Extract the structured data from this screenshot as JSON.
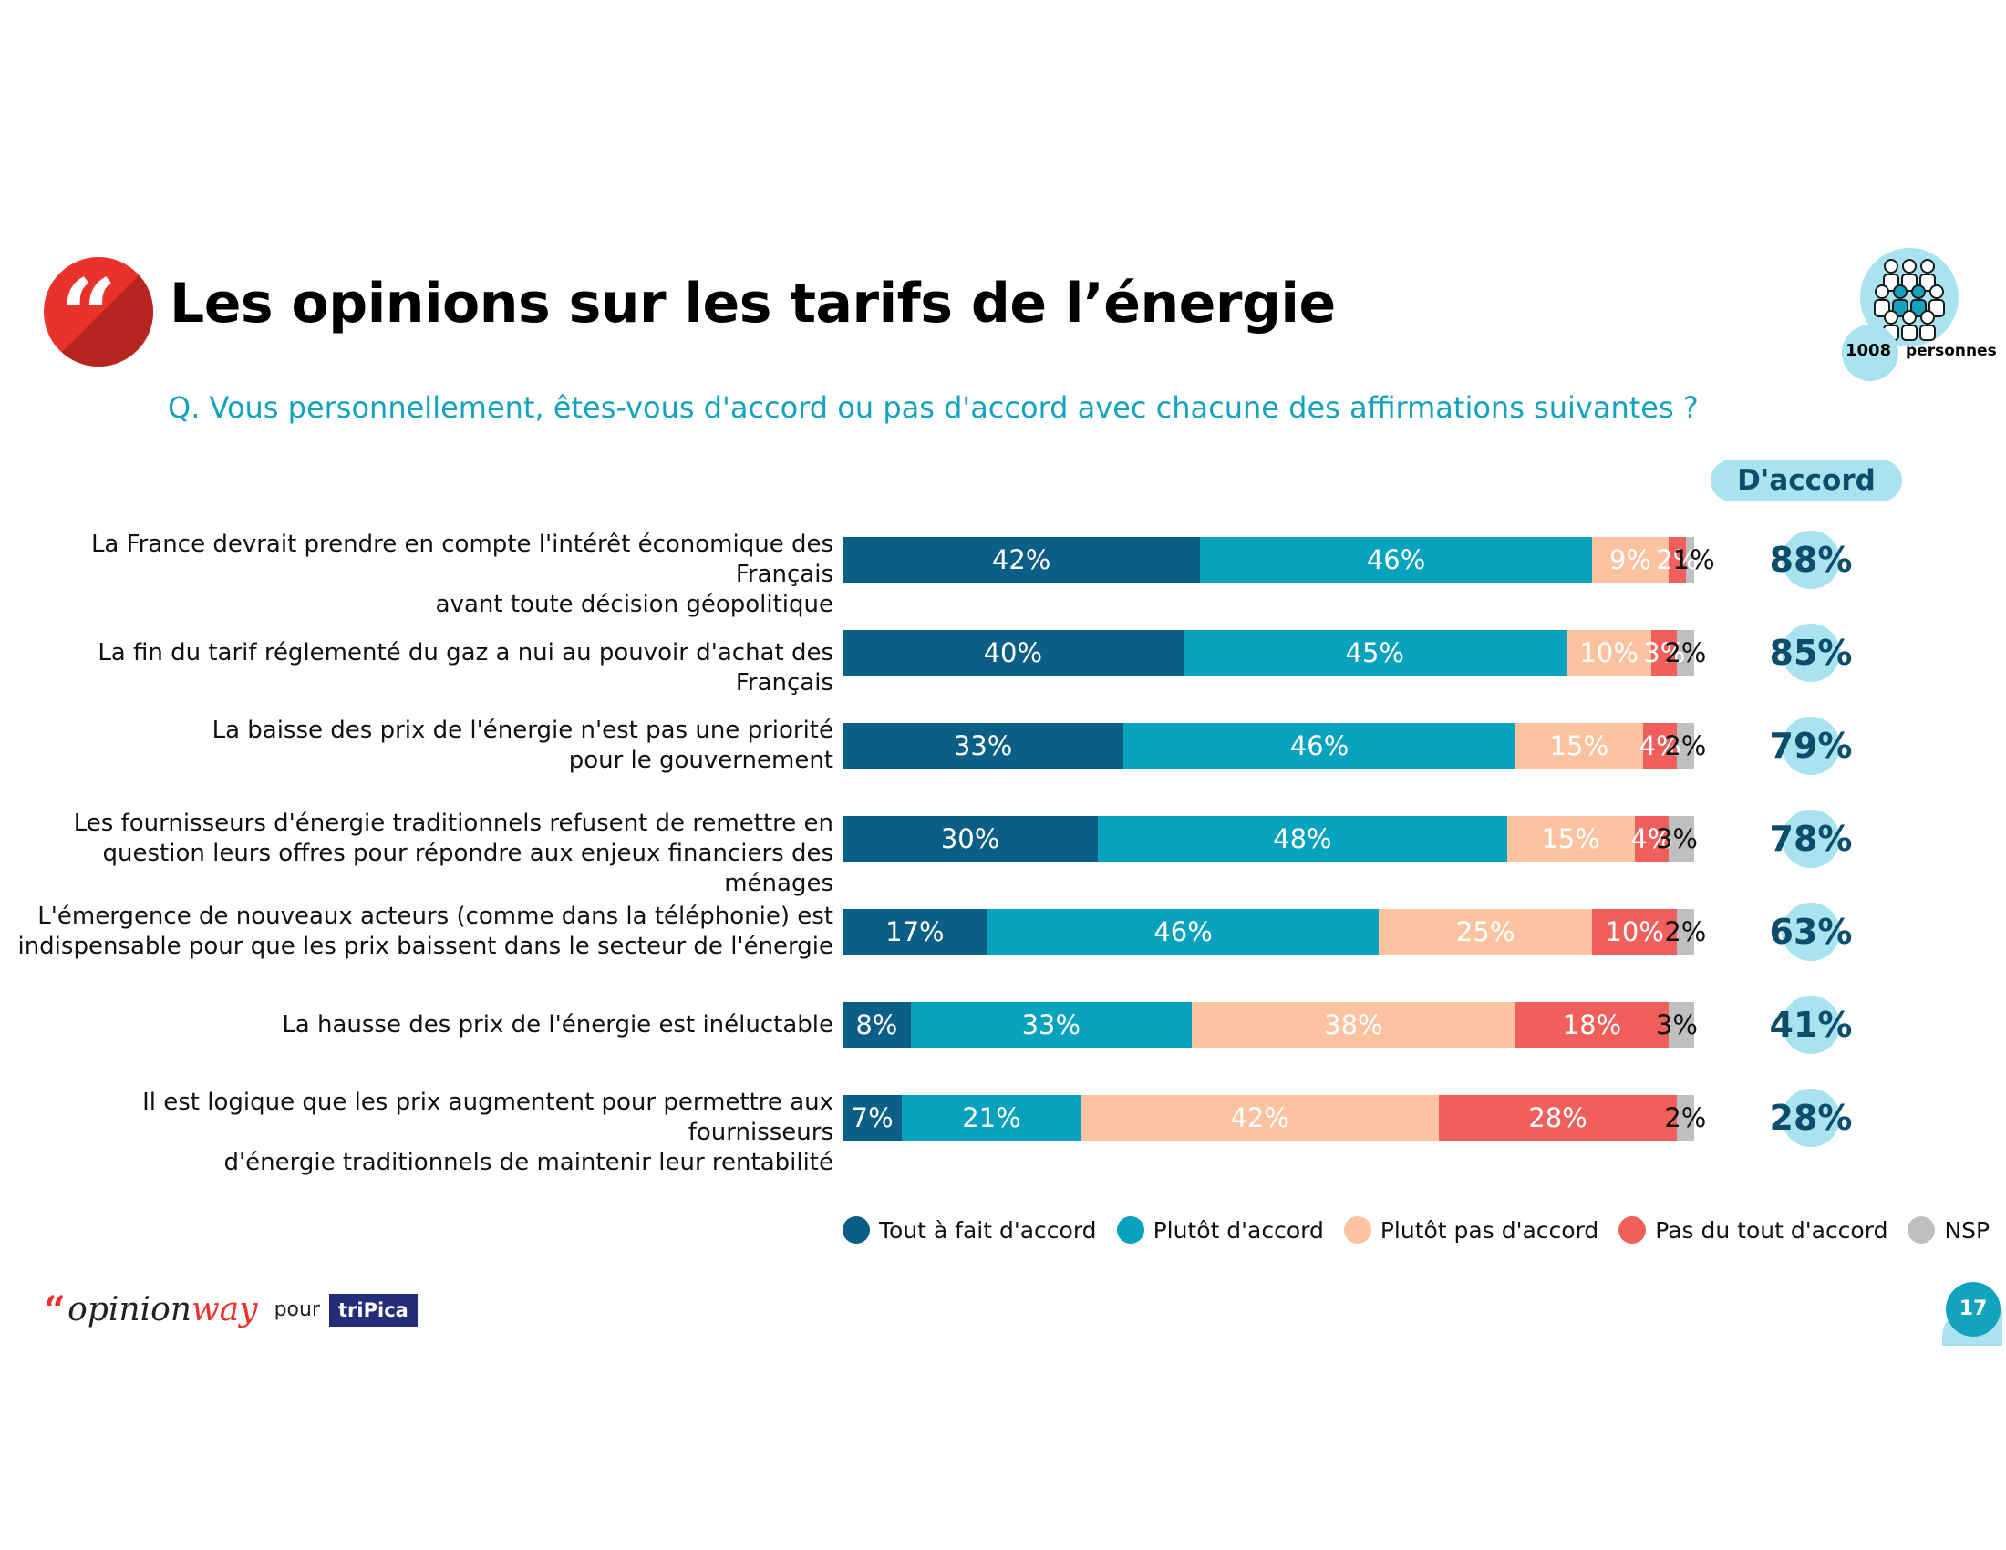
{
  "title": "Les opinions sur les tarifs de l’énergie",
  "quote_mark": "“",
  "question": "Q. Vous personnellement, êtes-vous d'accord ou pas d'accord avec chacune des affirmations suivantes ?",
  "sample": {
    "count": "1008",
    "label": "personnes",
    "icon": "people-group-icon"
  },
  "accord_header": "D'accord",
  "colors": {
    "tout_a_fait": "#0b5f86",
    "plutot": "#07a2be",
    "plutot_pas": "#fcc3a1",
    "pas_du_tout": "#f05f5b",
    "nsp": "#bfbfbf",
    "accent": "#e8322a",
    "teal_light": "#a8e3ef"
  },
  "chart_data": {
    "type": "bar",
    "orientation": "horizontal",
    "stacked": true,
    "categories": [
      "La France devrait prendre en compte l'intérêt économique des Français avant toute décision géopolitique",
      "La fin du tarif réglementé du gaz a nui au pouvoir d'achat des Français",
      "La baisse des prix de l'énergie n'est pas une priorité pour le gouvernement",
      "Les fournisseurs d'énergie traditionnels refusent de remettre en question leurs offres pour répondre aux enjeux financiers des ménages",
      "L'émergence de nouveaux acteurs (comme dans la téléphonie) est indispensable pour que les prix baissent dans le secteur de l'énergie",
      "La hausse des prix de l'énergie est inéluctable",
      "Il est logique que les prix augmentent pour permettre aux fournisseurs d'énergie traditionnels de maintenir leur rentabilité"
    ],
    "label_lines": [
      [
        "La France devrait prendre en compte l'intérêt économique des Français",
        "avant toute décision géopolitique"
      ],
      [
        "La fin du tarif réglementé du gaz a nui au pouvoir d'achat des Français"
      ],
      [
        "La baisse des prix de l'énergie n'est pas une priorité",
        "pour le gouvernement"
      ],
      [
        "Les fournisseurs d'énergie traditionnels refusent de remettre en",
        "question leurs offres pour répondre aux enjeux financiers des ménages"
      ],
      [
        "L'émergence de nouveaux acteurs (comme dans la téléphonie) est",
        "indispensable pour que les prix baissent dans le secteur de l'énergie"
      ],
      [
        "La hausse des prix de l'énergie est inéluctable"
      ],
      [
        "Il est logique que les prix augmentent pour permettre aux fournisseurs",
        "d'énergie traditionnels de maintenir leur rentabilité"
      ]
    ],
    "series": [
      {
        "name": "Tout à fait d'accord",
        "color_key": "tout_a_fait",
        "values": [
          42,
          40,
          33,
          30,
          17,
          8,
          7
        ]
      },
      {
        "name": "Plutôt d'accord",
        "color_key": "plutot",
        "values": [
          46,
          45,
          46,
          48,
          46,
          33,
          21
        ]
      },
      {
        "name": "Plutôt pas d'accord",
        "color_key": "plutot_pas",
        "values": [
          9,
          10,
          15,
          15,
          25,
          38,
          42
        ]
      },
      {
        "name": "Pas du tout d'accord",
        "color_key": "pas_du_tout",
        "values": [
          2,
          3,
          4,
          4,
          10,
          18,
          28
        ]
      },
      {
        "name": "NSP",
        "color_key": "nsp",
        "values": [
          1,
          2,
          2,
          3,
          2,
          3,
          2
        ]
      }
    ],
    "accord_totals": [
      88,
      85,
      79,
      78,
      63,
      41,
      28
    ],
    "value_suffix": "%",
    "xlim": [
      0,
      100
    ],
    "legend_position": "bottom"
  },
  "footer": {
    "brand_part1": "opinion",
    "brand_part2": "way",
    "pour": "pour",
    "client": "triPica",
    "page_number": "17"
  }
}
